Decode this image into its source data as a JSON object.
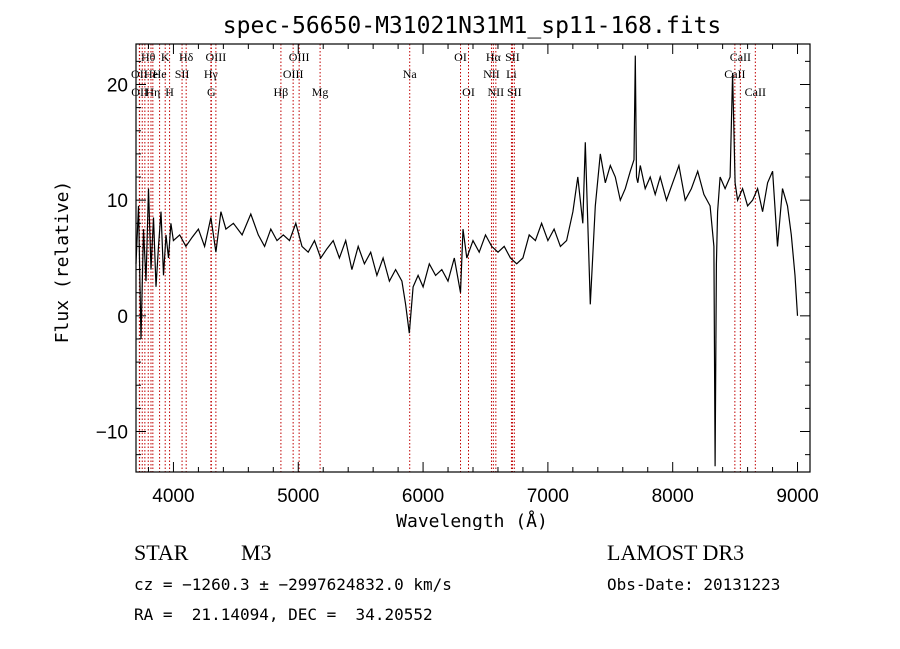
{
  "chart_data": {
    "type": "line",
    "title": "spec-56650-M31021N31M1_sp11-168.fits",
    "xlabel": "Wavelength (Å)",
    "ylabel": "Flux (relative)",
    "xlim": [
      3700,
      9100
    ],
    "ylim": [
      -13.5,
      23.5
    ],
    "x_ticks": [
      4000,
      5000,
      6000,
      7000,
      8000,
      9000
    ],
    "y_ticks": [
      -10,
      0,
      10,
      20
    ],
    "grid": false,
    "series": [
      {
        "x": [
          3700,
          3720,
          3740,
          3760,
          3780,
          3800,
          3820,
          3840,
          3860,
          3880,
          3900,
          3920,
          3940,
          3960,
          3980,
          4000,
          4050,
          4100,
          4150,
          4200,
          4250,
          4300,
          4340,
          4380,
          4420,
          4480,
          4550,
          4620,
          4680,
          4730,
          4780,
          4830,
          4880,
          4930,
          4980,
          5030,
          5080,
          5130,
          5180,
          5230,
          5280,
          5330,
          5380,
          5430,
          5480,
          5530,
          5580,
          5630,
          5680,
          5730,
          5780,
          5830,
          5860,
          5890,
          5920,
          5960,
          6000,
          6050,
          6100,
          6150,
          6200,
          6250,
          6300,
          6320,
          6350,
          6400,
          6450,
          6500,
          6550,
          6600,
          6650,
          6700,
          6750,
          6800,
          6850,
          6900,
          6950,
          7000,
          7050,
          7100,
          7150,
          7200,
          7240,
          7280,
          7300,
          7340,
          7380,
          7420,
          7460,
          7500,
          7540,
          7580,
          7620,
          7660,
          7690,
          7700,
          7710,
          7720,
          7740,
          7780,
          7820,
          7860,
          7900,
          7950,
          8000,
          8050,
          8100,
          8150,
          8200,
          8250,
          8300,
          8330,
          8340,
          8350,
          8360,
          8380,
          8420,
          8460,
          8480,
          8500,
          8520,
          8560,
          8600,
          8640,
          8680,
          8720,
          8760,
          8800,
          8840,
          8880,
          8920,
          8950,
          8980,
          9000
        ],
        "y": [
          4.5,
          9.5,
          -2.0,
          7.5,
          3.0,
          11.0,
          4.0,
          8.5,
          2.5,
          6.0,
          9.0,
          3.5,
          7.0,
          5.0,
          8.0,
          6.5,
          7.0,
          6.0,
          6.8,
          7.5,
          6.0,
          8.5,
          5.5,
          9.0,
          7.5,
          8.0,
          7.0,
          8.8,
          7.0,
          6.0,
          7.5,
          6.5,
          7.0,
          6.5,
          8.0,
          6.0,
          5.5,
          6.5,
          5.0,
          5.8,
          6.5,
          5.0,
          6.5,
          4.0,
          6.0,
          4.5,
          5.5,
          3.5,
          5.0,
          3.0,
          4.0,
          3.0,
          1.0,
          -1.5,
          2.5,
          3.5,
          2.5,
          4.5,
          3.5,
          4.0,
          3.0,
          5.0,
          2.0,
          7.5,
          5.0,
          6.5,
          5.5,
          7.0,
          6.0,
          5.5,
          6.0,
          5.0,
          4.5,
          5.0,
          7.0,
          6.5,
          8.0,
          6.5,
          7.5,
          6.0,
          6.5,
          9.0,
          12.0,
          8.0,
          15.0,
          1.0,
          9.5,
          14.0,
          11.5,
          13.0,
          12.0,
          10.0,
          11.0,
          12.5,
          13.5,
          22.5,
          12.0,
          11.5,
          13.0,
          11.0,
          12.0,
          10.5,
          12.0,
          10.0,
          11.5,
          13.0,
          10.0,
          11.0,
          12.5,
          10.5,
          9.5,
          6.0,
          -13.0,
          4.5,
          9.0,
          12.0,
          11.0,
          12.0,
          21.0,
          11.5,
          10.0,
          11.0,
          9.5,
          10.0,
          11.0,
          9.0,
          11.5,
          12.5,
          6.0,
          11.0,
          9.5,
          7.0,
          3.5,
          0.0
        ]
      }
    ],
    "line_labels": [
      {
        "text": "Hθ",
        "wl": 3798,
        "row": 0
      },
      {
        "text": "OII",
        "wl": 3727,
        "row": 1
      },
      {
        "text": "OII",
        "wl": 3729,
        "row": 2
      },
      {
        "text": "He",
        "wl": 3820,
        "row": 1
      },
      {
        "text": "Hη",
        "wl": 3835,
        "row": 2
      },
      {
        "text": "K",
        "wl": 3934,
        "row": 0
      },
      {
        "text": "He",
        "wl": 3889,
        "row": 1
      },
      {
        "text": "H",
        "wl": 3969,
        "row": 2
      },
      {
        "text": "SII",
        "wl": 4069,
        "row": 1
      },
      {
        "text": "Hδ",
        "wl": 4102,
        "row": 0
      },
      {
        "text": "OIII",
        "wl": 4340,
        "row": 0
      },
      {
        "text": "Hγ",
        "wl": 4300,
        "row": 1
      },
      {
        "text": "G",
        "wl": 4304,
        "row": 2
      },
      {
        "text": "Hβ",
        "wl": 4861,
        "row": 2
      },
      {
        "text": "OIII",
        "wl": 5007,
        "row": 0
      },
      {
        "text": "OIII",
        "wl": 4959,
        "row": 1
      },
      {
        "text": "Mg",
        "wl": 5175,
        "row": 2
      },
      {
        "text": "Na",
        "wl": 5893,
        "row": 1
      },
      {
        "text": "OI",
        "wl": 6300,
        "row": 0
      },
      {
        "text": "OI",
        "wl": 6364,
        "row": 2
      },
      {
        "text": "Hα",
        "wl": 6563,
        "row": 0
      },
      {
        "text": "NII",
        "wl": 6548,
        "row": 1
      },
      {
        "text": "NII",
        "wl": 6583,
        "row": 2
      },
      {
        "text": "SII",
        "wl": 6716,
        "row": 0
      },
      {
        "text": "Li",
        "wl": 6708,
        "row": 1
      },
      {
        "text": "SII",
        "wl": 6731,
        "row": 2
      },
      {
        "text": "CaII",
        "wl": 8542,
        "row": 0
      },
      {
        "text": "CaII",
        "wl": 8498,
        "row": 1
      },
      {
        "text": "CaII",
        "wl": 8662,
        "row": 2
      }
    ],
    "line_marks_wl": [
      3727,
      3729,
      3750,
      3771,
      3798,
      3820,
      3835,
      3889,
      3934,
      3969,
      4069,
      4102,
      4300,
      4304,
      4340,
      4861,
      4959,
      5007,
      5175,
      5893,
      6300,
      6364,
      6548,
      6563,
      6583,
      6708,
      6716,
      6731,
      8498,
      8542,
      8662
    ],
    "line_mark_color": "#c00000"
  },
  "info": {
    "object_class": "STAR",
    "subclass": "M3",
    "survey": "LAMOST DR3",
    "cz_line": "cz = −1260.3 ± −2997624832.0 km/s",
    "obs_date": "Obs-Date: 20131223",
    "radec_line": "RA =  21.14094, DEC =  34.20552"
  }
}
